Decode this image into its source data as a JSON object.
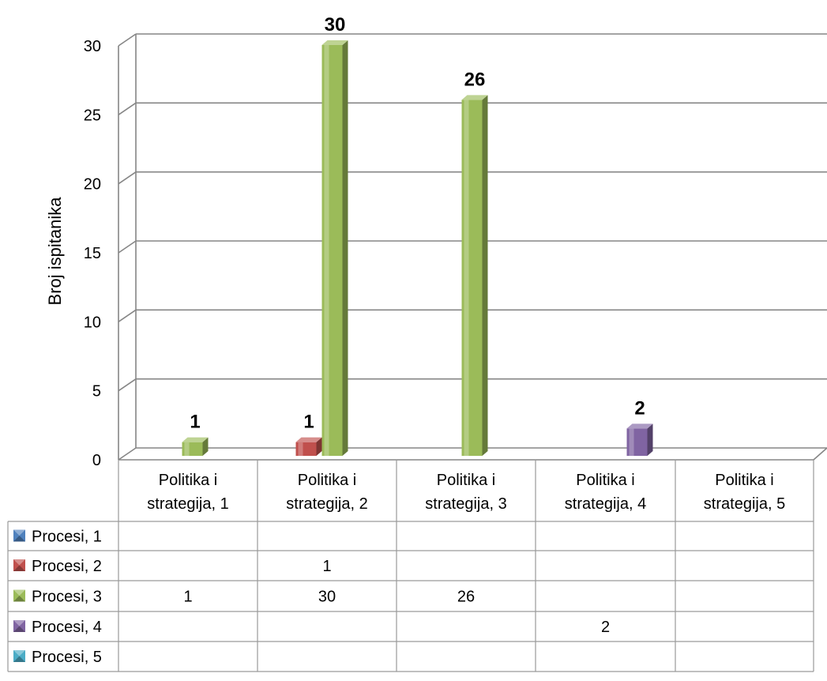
{
  "chart_data": {
    "type": "bar",
    "title": "",
    "xlabel": "",
    "ylabel": "Broj ispitanika",
    "ylim": [
      0,
      30
    ],
    "yticks": [
      0,
      5,
      10,
      15,
      20,
      25,
      30
    ],
    "grid": true,
    "legend_placement": "data-table-left",
    "categories": [
      [
        "Politika i",
        "strategija, 1"
      ],
      [
        "Politika i",
        "strategija, 2"
      ],
      [
        "Politika i",
        "strategija, 3"
      ],
      [
        "Politika i",
        "strategija, 4"
      ],
      [
        "Politika i",
        "strategija, 5"
      ]
    ],
    "series": [
      {
        "name": "Procesi, 1",
        "color": "#4f81bd",
        "values": [
          null,
          null,
          null,
          null,
          null
        ]
      },
      {
        "name": "Procesi, 2",
        "color": "#c0504d",
        "values": [
          null,
          1,
          null,
          null,
          null
        ]
      },
      {
        "name": "Procesi, 3",
        "color": "#9bbb59",
        "values": [
          1,
          30,
          26,
          null,
          null
        ]
      },
      {
        "name": "Procesi, 4",
        "color": "#8064a2",
        "values": [
          null,
          null,
          null,
          2,
          null
        ]
      },
      {
        "name": "Procesi, 5",
        "color": "#4bacc6",
        "values": [
          null,
          null,
          null,
          null,
          null
        ]
      }
    ],
    "data_labels": [
      {
        "series": 2,
        "category": 0,
        "text": "1"
      },
      {
        "series": 1,
        "category": 1,
        "text": "1"
      },
      {
        "series": 2,
        "category": 1,
        "text": "30"
      },
      {
        "series": 2,
        "category": 2,
        "text": "26"
      },
      {
        "series": 3,
        "category": 3,
        "text": "2"
      }
    ]
  }
}
